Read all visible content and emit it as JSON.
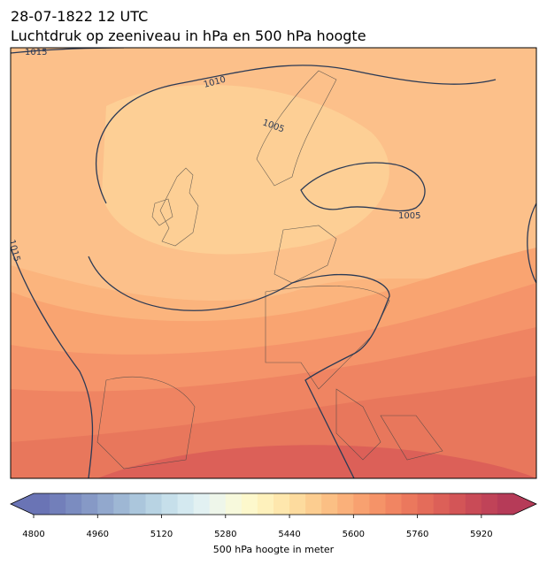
{
  "header": {
    "date": "28-07-1822 12 UTC",
    "title": "Luchtdruk op zeeniveau in hPa en 500 hPa hoogte"
  },
  "map": {
    "contour_labels": [
      "1015",
      "1010",
      "1005",
      "1005",
      "1015"
    ]
  },
  "colorbar": {
    "min": 4800,
    "max": 6000,
    "extend": "both",
    "colors": [
      "#6a74b5",
      "#727fba",
      "#7b8cc0",
      "#8699c6",
      "#92a8cd",
      "#9eb7d4",
      "#abc6dc",
      "#b8d3e3",
      "#c6dfea",
      "#d4e9f0",
      "#e2f1f2",
      "#eef6ea",
      "#f7f9dc",
      "#fdf8cc",
      "#fef1bc",
      "#fee7ad",
      "#fddb9e",
      "#fccd90",
      "#fbbf84",
      "#fab07a",
      "#f8a170",
      "#f59368",
      "#f18562",
      "#eb785d",
      "#e46c5a",
      "#dc6058",
      "#d35557",
      "#c94b57",
      "#c04358",
      "#b63b58"
    ],
    "ticks": [
      4800,
      4960,
      5120,
      5280,
      5440,
      5600,
      5760,
      5920
    ],
    "label": "500 hPa hoogte in meter"
  }
}
